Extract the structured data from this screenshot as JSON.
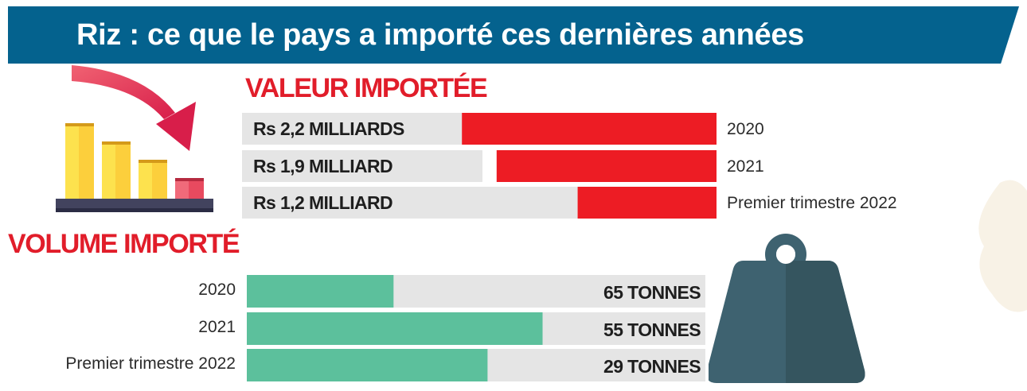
{
  "title": "Riz : ce que le pays a importé ces dernières années",
  "colors": {
    "banner": "#04628e",
    "heading": "#e11d2a",
    "valeur_bar": "#ed1c24",
    "volume_bar": "#5cc09c",
    "track": "#e5e5e5",
    "weight": "#3e6270"
  },
  "chart_data": [
    {
      "type": "bar",
      "orientation": "horizontal",
      "title": "VALEUR IMPORTÉE",
      "categories": [
        "2020",
        "2021",
        "Premier trimestre 2022"
      ],
      "values": [
        2.2,
        1.9,
        1.2
      ],
      "unit": "milliards de roupies",
      "data_labels": [
        "Rs 2,2 MILLIARDS",
        "Rs 1,9 MILLIARD",
        "Rs 1,2 MILLIARD"
      ],
      "xlim": [
        0,
        4.1
      ]
    },
    {
      "type": "bar",
      "orientation": "horizontal",
      "title": "VOLUME IMPORTÉ",
      "categories": [
        "2020",
        "2021",
        "Premier trimestre 2022"
      ],
      "values": [
        65,
        55,
        29
      ],
      "unit": "tonnes",
      "data_labels": [
        "65 TONNES",
        "55 TONNES",
        "29 TONNES"
      ],
      "fill_fractions": [
        0.32,
        0.645,
        0.525
      ]
    }
  ]
}
